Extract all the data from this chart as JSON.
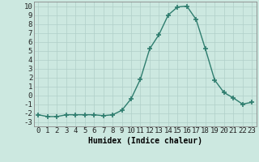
{
  "x": [
    0,
    1,
    2,
    3,
    4,
    5,
    6,
    7,
    8,
    9,
    10,
    11,
    12,
    13,
    14,
    15,
    16,
    17,
    18,
    19,
    20,
    21,
    22,
    23
  ],
  "y": [
    -2.2,
    -2.4,
    -2.4,
    -2.2,
    -2.2,
    -2.2,
    -2.2,
    -2.3,
    -2.2,
    -1.7,
    -0.4,
    1.8,
    5.2,
    6.8,
    9.0,
    9.9,
    10.0,
    8.5,
    5.2,
    1.7,
    0.3,
    -0.3,
    -1.0,
    -0.8
  ],
  "line_color": "#2e7d6e",
  "marker": "+",
  "markersize": 4,
  "markeredgewidth": 1.2,
  "linewidth": 1.0,
  "bg_color": "#cce8e0",
  "grid_color": "#b0cfc8",
  "xlabel": "Humidex (Indice chaleur)",
  "xlim": [
    -0.5,
    23.5
  ],
  "ylim": [
    -3.5,
    10.5
  ],
  "yticks": [
    -3,
    -2,
    -1,
    0,
    1,
    2,
    3,
    4,
    5,
    6,
    7,
    8,
    9,
    10
  ],
  "xticks": [
    0,
    1,
    2,
    3,
    4,
    5,
    6,
    7,
    8,
    9,
    10,
    11,
    12,
    13,
    14,
    15,
    16,
    17,
    18,
    19,
    20,
    21,
    22,
    23
  ],
  "label_fontsize": 7,
  "tick_fontsize": 6.5
}
